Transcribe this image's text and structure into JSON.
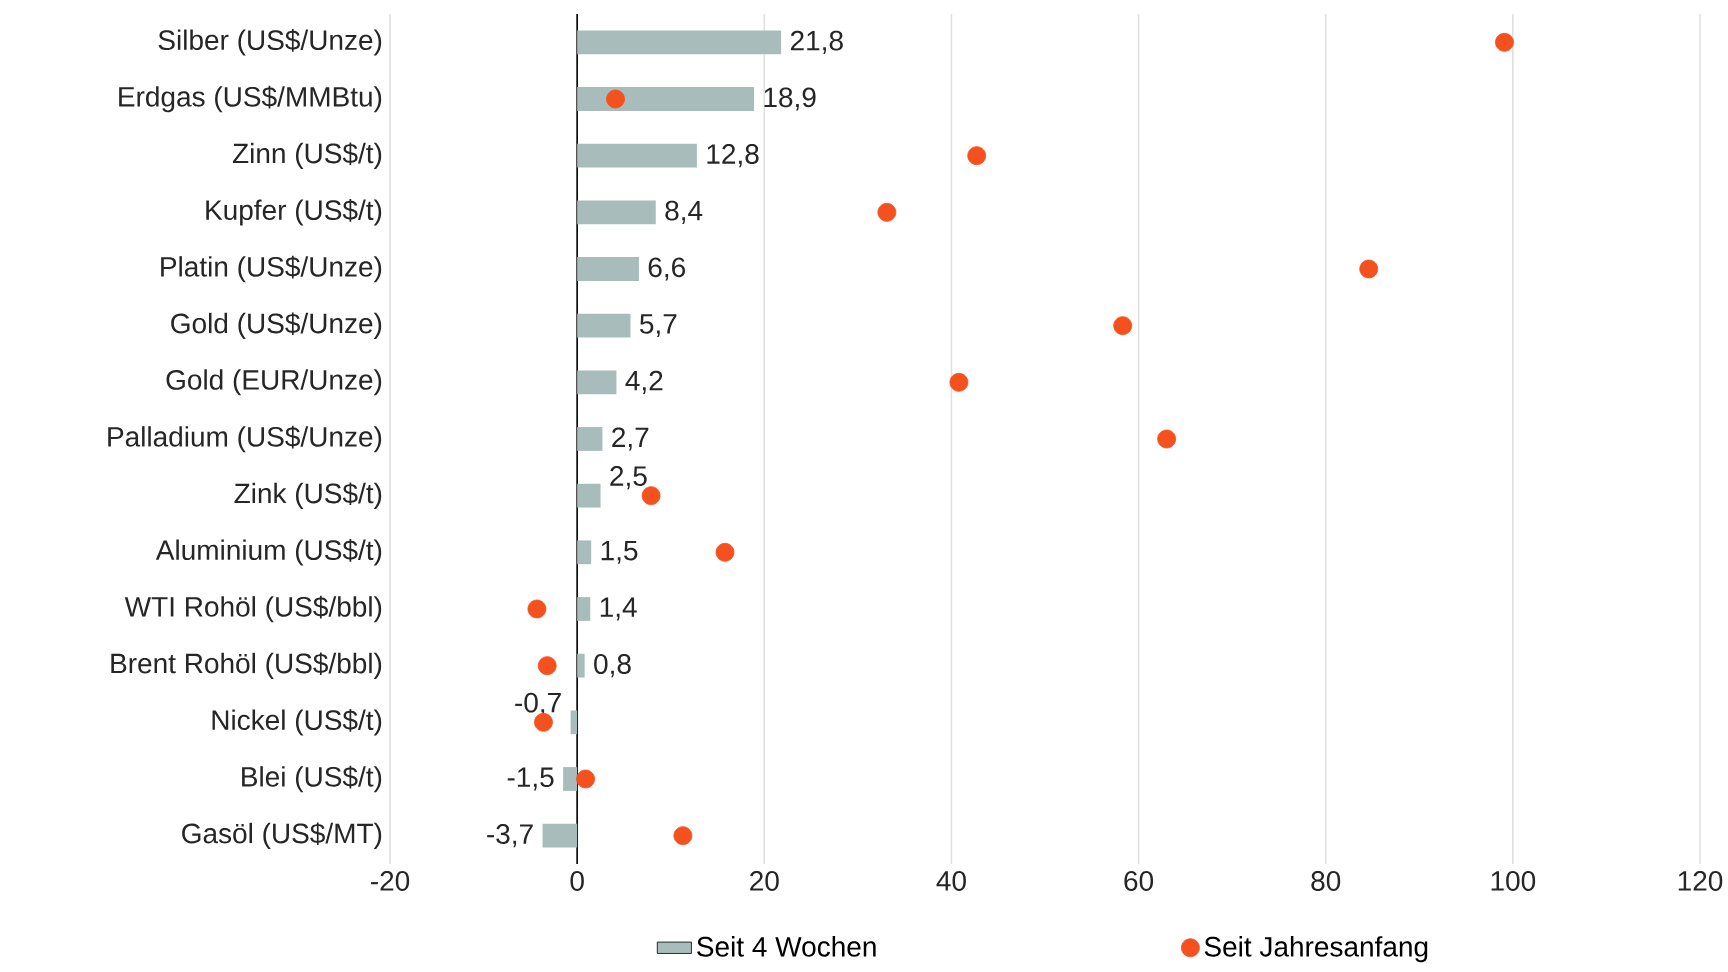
{
  "chart_data": {
    "type": "bar",
    "orientation": "horizontal",
    "categories": [
      "Silber (US$/Unze)",
      "Erdgas (US$/MMBtu)",
      "Zinn (US$/t)",
      "Kupfer (US$/t)",
      "Platin (US$/Unze)",
      "Gold (US$/Unze)",
      "Gold (EUR/Unze)",
      "Palladium (US$/Unze)",
      "Zink (US$/t)",
      "Aluminium (US$/t)",
      "WTI Rohöl (US$/bbl)",
      "Brent Rohöl (US$/bbl)",
      "Nickel (US$/t)",
      "Blei (US$/t)",
      "Gasöl (US$/MT)"
    ],
    "series": [
      {
        "name": "Seit 4 Wochen",
        "type": "bar",
        "color": "#a9bcbc",
        "values": [
          21.8,
          18.9,
          12.8,
          8.4,
          6.6,
          5.7,
          4.2,
          2.7,
          2.5,
          1.5,
          1.4,
          0.8,
          -0.7,
          -1.5,
          -3.7
        ],
        "value_labels": [
          "21,8",
          "18,9",
          "12,8",
          "8,4",
          "6,6",
          "5,7",
          "4,2",
          "2,7",
          "2,5",
          "1,5",
          "1,4",
          "0,8",
          "-0,7",
          "-1,5",
          "-3,7"
        ]
      },
      {
        "name": "Seit Jahresanfang",
        "type": "scatter",
        "marker": "circle",
        "color": "#f4511e",
        "values": [
          99.1,
          4.1,
          42.7,
          33.1,
          84.6,
          58.3,
          40.8,
          63.0,
          7.9,
          15.8,
          -4.3,
          -3.2,
          -3.6,
          0.9,
          11.3
        ]
      }
    ],
    "xlim": [
      -20,
      120
    ],
    "xticks": [
      -20,
      0,
      20,
      40,
      60,
      80,
      100,
      120
    ],
    "grid": "x",
    "legend": "bottom"
  }
}
